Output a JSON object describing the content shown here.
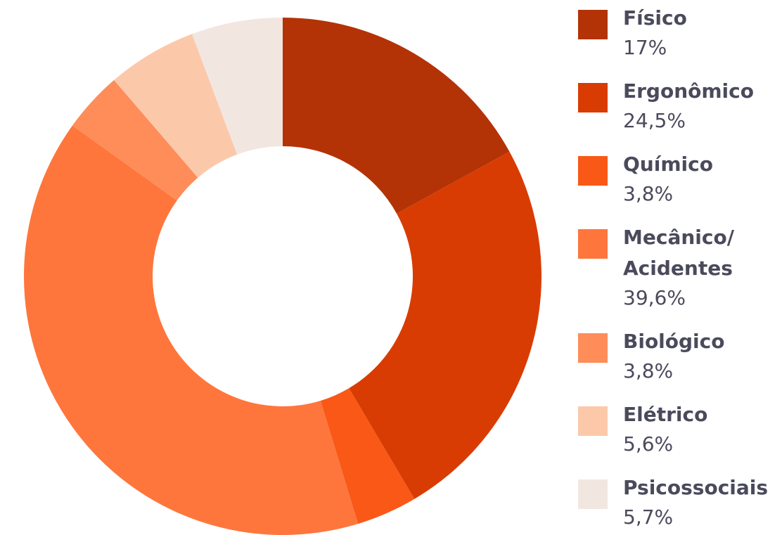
{
  "chart_data": {
    "type": "donut",
    "categories": [
      "Físico",
      "Ergonômico",
      "Químico",
      "Mecânico/ Acidentes",
      "Biológico",
      "Elétrico",
      "Psicossociais"
    ],
    "values": [
      17,
      24.5,
      3.8,
      39.6,
      3.8,
      5.6,
      5.7
    ],
    "value_labels": [
      "17%",
      "24,5%",
      "3,8%",
      "39,6%",
      "3,8%",
      "5,6%",
      "5,7%"
    ],
    "colors": [
      "#b33306",
      "#d83c02",
      "#f95816",
      "#fe763c",
      "#fe8d59",
      "#fbc9aa",
      "#f2e6e0"
    ],
    "legend": "right"
  }
}
